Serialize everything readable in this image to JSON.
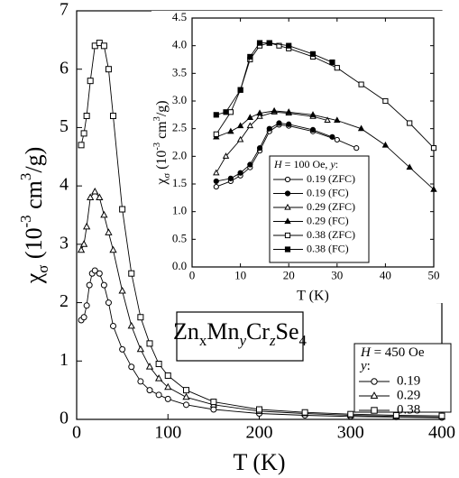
{
  "chart_data": [
    {
      "type": "line",
      "xlabel": "T  (K)",
      "ylabel": [
        {
          "text": "χ"
        },
        {
          "text": "σ",
          "shift": "sub"
        },
        {
          "text": "  (10"
        },
        {
          "text": "-3",
          "shift": "super"
        },
        {
          "text": " cm"
        },
        {
          "text": "3",
          "shift": "super"
        },
        {
          "text": "/g)"
        }
      ],
      "xlim": [
        0,
        400
      ],
      "xticks": [
        0,
        100,
        200,
        300,
        400
      ],
      "ylim": [
        0,
        7
      ],
      "yticks": [
        0,
        1,
        2,
        3,
        4,
        5,
        6,
        7
      ],
      "annotation": [
        {
          "text": "Zn"
        },
        {
          "text": "x",
          "shift": "sub"
        },
        {
          "text": "Mn"
        },
        {
          "text": "y",
          "shift": "sub",
          "style": "italic"
        },
        {
          "text": "Cr"
        },
        {
          "text": "z",
          "shift": "sub",
          "style": "italic"
        },
        {
          "text": "Se"
        },
        {
          "text": "4",
          "shift": "sub"
        }
      ],
      "legend_title": [
        {
          "text": "H",
          "style": "italic"
        },
        {
          "text": " = 450 Oe"
        }
      ],
      "legend_subtitle": [
        {
          "text": "y",
          "style": "italic"
        },
        {
          "text": ":"
        }
      ],
      "series": [
        {
          "name": "0.19",
          "marker": "circle",
          "filled": false,
          "color": "#000000",
          "x": [
            5,
            8,
            11,
            14,
            17,
            20,
            25,
            30,
            35,
            40,
            50,
            60,
            70,
            80,
            90,
            100,
            120,
            150,
            200,
            250,
            300,
            350,
            400
          ],
          "values": [
            1.7,
            1.75,
            1.95,
            2.3,
            2.5,
            2.55,
            2.5,
            2.3,
            2.0,
            1.6,
            1.2,
            0.9,
            0.65,
            0.5,
            0.42,
            0.35,
            0.25,
            0.17,
            0.1,
            0.07,
            0.05,
            0.04,
            0.03
          ]
        },
        {
          "name": "0.29",
          "marker": "triangle",
          "filled": false,
          "color": "#000000",
          "x": [
            5,
            8,
            11,
            15,
            20,
            25,
            30,
            35,
            40,
            50,
            60,
            70,
            80,
            90,
            100,
            120,
            150,
            200,
            250,
            300,
            350,
            400
          ],
          "values": [
            2.9,
            3.0,
            3.3,
            3.8,
            3.9,
            3.8,
            3.5,
            3.2,
            2.9,
            2.2,
            1.6,
            1.2,
            0.9,
            0.7,
            0.55,
            0.38,
            0.25,
            0.14,
            0.1,
            0.07,
            0.05,
            0.04
          ]
        },
        {
          "name": "0.38",
          "marker": "square",
          "filled": false,
          "color": "#000000",
          "x": [
            5,
            8,
            11,
            15,
            20,
            25,
            30,
            35,
            40,
            50,
            60,
            70,
            80,
            90,
            100,
            120,
            150,
            200,
            250,
            300,
            350,
            400
          ],
          "values": [
            4.7,
            4.9,
            5.2,
            5.8,
            6.4,
            6.45,
            6.4,
            6.0,
            5.2,
            3.6,
            2.5,
            1.75,
            1.3,
            0.95,
            0.75,
            0.5,
            0.3,
            0.17,
            0.12,
            0.09,
            0.07,
            0.06
          ]
        }
      ]
    },
    {
      "type": "line",
      "xlabel": "T  (K)",
      "ylabel": [
        {
          "text": "χ"
        },
        {
          "text": "σ",
          "shift": "sub"
        },
        {
          "text": " (10"
        },
        {
          "text": "-3",
          "shift": "super"
        },
        {
          "text": " cm"
        },
        {
          "text": "3",
          "shift": "super"
        },
        {
          "text": "/g)"
        }
      ],
      "xlim": [
        0,
        50
      ],
      "xticks": [
        0,
        10,
        20,
        30,
        40,
        50
      ],
      "ylim": [
        0,
        4.5
      ],
      "yticks": [
        {
          "value": 0,
          "label": "0.0"
        },
        0.5,
        {
          "value": 1,
          "label": "1.0"
        },
        1.5,
        {
          "value": 2,
          "label": "2.0"
        },
        2.5,
        {
          "value": 3,
          "label": "3.0"
        },
        3.5,
        {
          "value": 4,
          "label": "4.0"
        },
        4.5
      ],
      "legend_title": [
        {
          "text": "H",
          "style": "italic"
        },
        {
          "text": " = 100 Oe, "
        },
        {
          "text": "y",
          "style": "italic"
        },
        {
          "text": ":"
        }
      ],
      "series": [
        {
          "name": "0.19 (ZFC)",
          "marker": "circle",
          "filled": false,
          "color": "#000000",
          "x": [
            5,
            8,
            10,
            12,
            14,
            16,
            18,
            20,
            25,
            30,
            34
          ],
          "values": [
            1.45,
            1.55,
            1.65,
            1.8,
            2.1,
            2.45,
            2.57,
            2.55,
            2.45,
            2.3,
            2.15
          ]
        },
        {
          "name": "0.19 (FC)",
          "marker": "circle",
          "filled": true,
          "color": "#000000",
          "x": [
            5,
            8,
            10,
            12,
            14,
            16,
            18,
            20,
            25,
            29
          ],
          "values": [
            1.55,
            1.6,
            1.7,
            1.85,
            2.15,
            2.5,
            2.6,
            2.58,
            2.48,
            2.35
          ]
        },
        {
          "name": "0.29 (ZFC)",
          "marker": "triangle",
          "filled": false,
          "color": "#000000",
          "x": [
            5,
            7,
            10,
            12,
            14,
            17,
            20,
            25,
            28
          ],
          "values": [
            1.7,
            2.0,
            2.3,
            2.55,
            2.72,
            2.8,
            2.78,
            2.72,
            2.65
          ]
        },
        {
          "name": "0.29 (FC)",
          "marker": "triangle",
          "filled": true,
          "color": "#000000",
          "x": [
            5,
            8,
            10,
            12,
            14,
            17,
            20,
            25,
            30,
            35,
            40,
            45,
            50
          ],
          "values": [
            2.35,
            2.45,
            2.55,
            2.7,
            2.78,
            2.82,
            2.8,
            2.75,
            2.65,
            2.5,
            2.2,
            1.8,
            1.4
          ]
        },
        {
          "name": "0.38 (ZFC)",
          "marker": "square",
          "filled": false,
          "color": "#000000",
          "x": [
            5,
            8,
            10,
            12,
            14,
            16,
            18,
            20,
            25,
            30,
            35,
            40,
            45,
            50
          ],
          "values": [
            2.4,
            2.8,
            3.2,
            3.75,
            4.0,
            4.05,
            4.0,
            3.95,
            3.8,
            3.6,
            3.3,
            3.0,
            2.6,
            2.15
          ]
        },
        {
          "name": "0.38 (FC)",
          "marker": "square",
          "filled": true,
          "color": "#000000",
          "x": [
            5,
            7,
            10,
            12,
            14,
            16,
            20,
            25,
            29
          ],
          "values": [
            2.75,
            2.8,
            3.2,
            3.8,
            4.05,
            4.05,
            4.0,
            3.85,
            3.7
          ]
        }
      ]
    }
  ]
}
